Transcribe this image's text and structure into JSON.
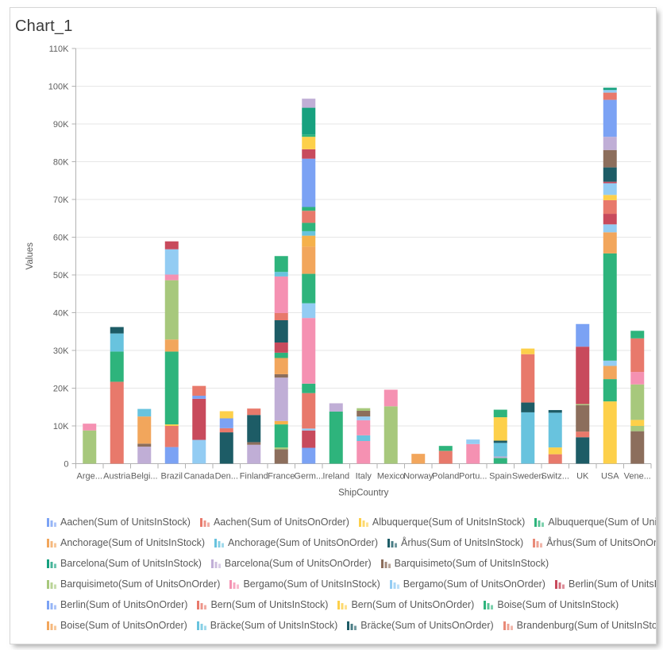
{
  "header": {
    "title": "Chart_1"
  },
  "chart_data": {
    "type": "bar",
    "stacked": true,
    "title": "Chart_1",
    "xlabel": "ShipCountry",
    "ylabel": "Values",
    "ylim": [
      0,
      110000
    ],
    "ytick_step": 10000,
    "grid": true,
    "legend_position": "bottom",
    "ytick_labels": [
      "0",
      "10K",
      "20K",
      "30K",
      "40K",
      "50K",
      "60K",
      "70K",
      "80K",
      "90K",
      "100K",
      "110K"
    ],
    "categories": [
      "Arge...",
      "Austria",
      "Belgi...",
      "Brazil",
      "Canada",
      "Den...",
      "Finland",
      "France",
      "Germ...",
      "Ireland",
      "Italy",
      "Mexico",
      "Norway",
      "Poland",
      "Portu...",
      "Spain",
      "Sweden",
      "Switz...",
      "UK",
      "USA",
      "Vene..."
    ],
    "palette": {
      "blue": "#7ba2f4",
      "coral": "#e8796b",
      "salmon": "#e98a78",
      "yellow": "#fdd04a",
      "gold": "#f5b14b",
      "green": "#2eb47c",
      "seagreen": "#17a17f",
      "orange": "#f2a65c",
      "cyan": "#68c3de",
      "teal": "#1d5c66",
      "lavender": "#c0aed6",
      "brown": "#8c6e5c",
      "olive": "#a7c87c",
      "pink": "#f591b2",
      "crimson": "#c84a5c",
      "ltblue": "#93ccf3"
    },
    "bars": [
      {
        "category": "Arge...",
        "segments": [
          [
            "olive",
            8800
          ],
          [
            "pink",
            1800
          ]
        ]
      },
      {
        "category": "Austria",
        "segments": [
          [
            "coral",
            21700
          ],
          [
            "green",
            8000
          ],
          [
            "cyan",
            4800
          ],
          [
            "teal",
            1700
          ]
        ]
      },
      {
        "category": "Belgi...",
        "segments": [
          [
            "lavender",
            4500
          ],
          [
            "brown",
            800
          ],
          [
            "orange",
            7200
          ],
          [
            "cyan",
            2000
          ]
        ]
      },
      {
        "category": "Brazil",
        "segments": [
          [
            "blue",
            4400
          ],
          [
            "coral",
            5600
          ],
          [
            "yellow",
            400
          ],
          [
            "green",
            19300
          ],
          [
            "orange",
            3200
          ],
          [
            "olive",
            15700
          ],
          [
            "pink",
            1500
          ],
          [
            "ltblue",
            6700
          ],
          [
            "crimson",
            2100
          ]
        ]
      },
      {
        "category": "Canada",
        "segments": [
          [
            "ltblue",
            6300
          ],
          [
            "crimson",
            10900
          ],
          [
            "blue",
            800
          ],
          [
            "coral",
            2600
          ]
        ]
      },
      {
        "category": "Den...",
        "segments": [
          [
            "teal",
            8300
          ],
          [
            "coral",
            1100
          ],
          [
            "blue",
            2600
          ],
          [
            "yellow",
            1900
          ]
        ]
      },
      {
        "category": "Finland",
        "segments": [
          [
            "lavender",
            5000
          ],
          [
            "brown",
            700
          ],
          [
            "teal",
            7200
          ],
          [
            "coral",
            1700
          ]
        ]
      },
      {
        "category": "France",
        "segments": [
          [
            "brown",
            3800
          ],
          [
            "olive",
            500
          ],
          [
            "green",
            6100
          ],
          [
            "gold",
            900
          ],
          [
            "lavender",
            11500
          ],
          [
            "brown",
            900
          ],
          [
            "orange",
            4300
          ],
          [
            "green",
            1400
          ],
          [
            "crimson",
            2700
          ],
          [
            "teal",
            5900
          ],
          [
            "coral",
            1900
          ],
          [
            "pink",
            9700
          ],
          [
            "cyan",
            1200
          ],
          [
            "green",
            4200
          ]
        ]
      },
      {
        "category": "Germ...",
        "segments": [
          [
            "blue",
            4200
          ],
          [
            "crimson",
            4600
          ],
          [
            "ltblue",
            500
          ],
          [
            "coral",
            9400
          ],
          [
            "green",
            2500
          ],
          [
            "pink",
            17400
          ],
          [
            "ltblue",
            3900
          ],
          [
            "green",
            7800
          ],
          [
            "orange",
            7200
          ],
          [
            "gold",
            2900
          ],
          [
            "cyan",
            1200
          ],
          [
            "green",
            2200
          ],
          [
            "coral",
            3200
          ],
          [
            "green",
            1000
          ],
          [
            "blue",
            12800
          ],
          [
            "crimson",
            2500
          ],
          [
            "yellow",
            3300
          ],
          [
            "green",
            600
          ],
          [
            "seagreen",
            7100
          ],
          [
            "lavender",
            2400
          ]
        ]
      },
      {
        "category": "Ireland",
        "segments": [
          [
            "green",
            13800
          ],
          [
            "lavender",
            2200
          ]
        ]
      },
      {
        "category": "Italy",
        "segments": [
          [
            "pink",
            6000
          ],
          [
            "cyan",
            1500
          ],
          [
            "pink",
            4000
          ],
          [
            "ltblue",
            1000
          ],
          [
            "brown",
            1500
          ],
          [
            "olive",
            700
          ]
        ]
      },
      {
        "category": "Mexico",
        "segments": [
          [
            "olive",
            15200
          ],
          [
            "pink",
            4400
          ]
        ]
      },
      {
        "category": "Norway",
        "segments": [
          [
            "orange",
            2600
          ]
        ]
      },
      {
        "category": "Poland",
        "segments": [
          [
            "coral",
            3400
          ],
          [
            "green",
            1300
          ]
        ]
      },
      {
        "category": "Portu...",
        "segments": [
          [
            "pink",
            5200
          ],
          [
            "ltblue",
            1200
          ]
        ]
      },
      {
        "category": "Spain",
        "segments": [
          [
            "green",
            1500
          ],
          [
            "lavender",
            400
          ],
          [
            "cyan",
            3600
          ],
          [
            "teal",
            600
          ],
          [
            "yellow",
            6200
          ],
          [
            "green",
            2000
          ]
        ]
      },
      {
        "category": "Sweden",
        "segments": [
          [
            "cyan",
            13600
          ],
          [
            "teal",
            2600
          ],
          [
            "coral",
            12800
          ],
          [
            "yellow",
            1500
          ]
        ]
      },
      {
        "category": "Switz...",
        "segments": [
          [
            "coral",
            2500
          ],
          [
            "yellow",
            1800
          ],
          [
            "cyan",
            9200
          ],
          [
            "teal",
            700
          ]
        ]
      },
      {
        "category": "UK",
        "segments": [
          [
            "teal",
            7000
          ],
          [
            "coral",
            1500
          ],
          [
            "brown",
            7000
          ],
          [
            "olive",
            300
          ],
          [
            "crimson",
            15200
          ],
          [
            "blue",
            6000
          ]
        ]
      },
      {
        "category": "USA",
        "segments": [
          [
            "yellow",
            16500
          ],
          [
            "green",
            5900
          ],
          [
            "orange",
            3500
          ],
          [
            "ltblue",
            1400
          ],
          [
            "green",
            28400
          ],
          [
            "orange",
            5600
          ],
          [
            "ltblue",
            2100
          ],
          [
            "crimson",
            2800
          ],
          [
            "coral",
            3600
          ],
          [
            "yellow",
            1400
          ],
          [
            "ltblue",
            3100
          ],
          [
            "crimson",
            400
          ],
          [
            "teal",
            3800
          ],
          [
            "brown",
            4600
          ],
          [
            "lavender",
            3500
          ],
          [
            "blue",
            9800
          ],
          [
            "coral",
            1900
          ],
          [
            "ltblue",
            700
          ],
          [
            "seagreen",
            600
          ]
        ]
      },
      {
        "category": "Vene...",
        "segments": [
          [
            "brown",
            8600
          ],
          [
            "olive",
            1400
          ],
          [
            "yellow",
            1600
          ],
          [
            "olive",
            9400
          ],
          [
            "pink",
            3300
          ],
          [
            "coral",
            8900
          ],
          [
            "green",
            2000
          ]
        ]
      }
    ],
    "legend_rows": [
      [
        {
          "label": "Aachen(Sum of UnitsInStock)",
          "color_key": "blue"
        },
        {
          "label": "Aachen(Sum of UnitsOnOrder)",
          "color_key": "coral"
        },
        {
          "label": "Albuquerque(Sum of UnitsInStock)",
          "color_key": "yellow"
        },
        {
          "label": "Albuquerque(Sum of UnitsOnOrder)",
          "color_key": "green"
        }
      ],
      [
        {
          "label": "Anchorage(Sum of UnitsInStock)",
          "color_key": "orange"
        },
        {
          "label": "Anchorage(Sum of UnitsOnOrder)",
          "color_key": "cyan"
        },
        {
          "label": "Århus(Sum of UnitsInStock)",
          "color_key": "teal"
        },
        {
          "label": "Århus(Sum of UnitsOnOrder)",
          "color_key": "salmon"
        }
      ],
      [
        {
          "label": "Barcelona(Sum of UnitsInStock)",
          "color_key": "seagreen"
        },
        {
          "label": "Barcelona(Sum of UnitsOnOrder)",
          "color_key": "lavender"
        },
        {
          "label": "Barquisimeto(Sum of UnitsInStock)",
          "color_key": "brown"
        }
      ],
      [
        {
          "label": "Barquisimeto(Sum of UnitsOnOrder)",
          "color_key": "olive"
        },
        {
          "label": "Bergamo(Sum of UnitsInStock)",
          "color_key": "pink"
        },
        {
          "label": "Bergamo(Sum of UnitsOnOrder)",
          "color_key": "ltblue"
        },
        {
          "label": "Berlin(Sum of UnitsInStock)",
          "color_key": "crimson"
        }
      ],
      [
        {
          "label": "Berlin(Sum of UnitsOnOrder)",
          "color_key": "blue"
        },
        {
          "label": "Bern(Sum of UnitsInStock)",
          "color_key": "coral"
        },
        {
          "label": "Bern(Sum of UnitsOnOrder)",
          "color_key": "yellow"
        },
        {
          "label": "Boise(Sum of UnitsInStock)",
          "color_key": "green"
        }
      ],
      [
        {
          "label": "Boise(Sum of UnitsOnOrder)",
          "color_key": "orange"
        },
        {
          "label": "Bräcke(Sum of UnitsInStock)",
          "color_key": "cyan"
        },
        {
          "label": "Bräcke(Sum of UnitsOnOrder)",
          "color_key": "teal"
        },
        {
          "label": "Brandenburg(Sum of UnitsInStock)",
          "color_key": "salmon"
        }
      ]
    ]
  }
}
